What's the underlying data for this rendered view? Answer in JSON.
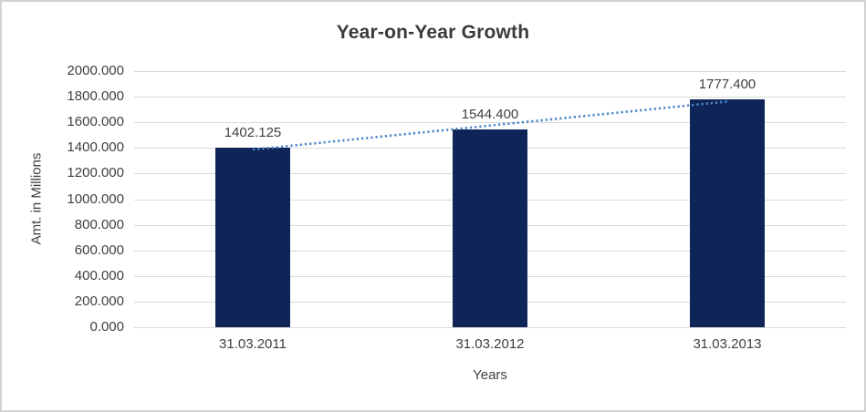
{
  "chart_data": {
    "type": "bar",
    "title": "Year-on-Year Growth",
    "xlabel": "Years",
    "ylabel": "Amt. in Millions",
    "categories": [
      "31.03.2011",
      "31.03.2012",
      "31.03.2013"
    ],
    "values": [
      1402.125,
      1544.4,
      1777.4
    ],
    "value_labels": [
      "1402.125",
      "1544.400",
      "1777.400"
    ],
    "ylim": [
      0,
      2000
    ],
    "ytick_step": 200,
    "ytick_labels": [
      "0.000",
      "200.000",
      "400.000",
      "600.000",
      "800.000",
      "1000.000",
      "1200.000",
      "1400.000",
      "1600.000",
      "1800.000",
      "2000.000"
    ],
    "grid": true,
    "legend": false,
    "colors": {
      "bar": "#0f2557",
      "trendline": "#4a86c8",
      "gridline": "#d9d9d9",
      "text": "#404040",
      "title": "#3a3a3a"
    },
    "trendline": {
      "type": "linear",
      "style": "dotted"
    }
  }
}
